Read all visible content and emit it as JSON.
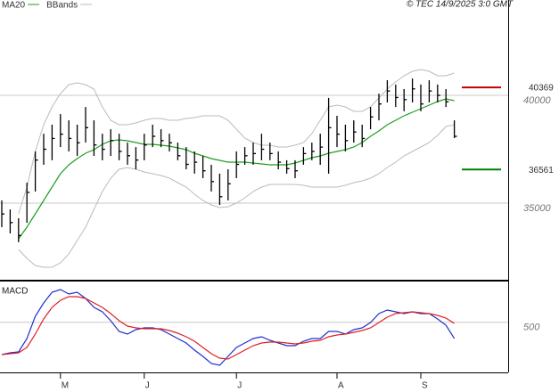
{
  "chart_data": [
    {
      "type": "ohlc",
      "credit": "© TEC 14/9/2025 3:0 GMT",
      "categories": [
        null,
        null,
        null,
        null,
        null,
        null,
        null,
        "M",
        null,
        null,
        null,
        null,
        null,
        null,
        null,
        null,
        null,
        "J",
        null,
        null,
        null,
        null,
        null,
        null,
        null,
        null,
        null,
        null,
        "J",
        null,
        null,
        null,
        null,
        null,
        null,
        null,
        null,
        null,
        null,
        null,
        "A",
        null,
        null,
        null,
        null,
        null,
        null,
        null,
        null,
        null,
        "S",
        null,
        null,
        null,
        null
      ],
      "high": [
        35130,
        34710,
        34300,
        35950,
        37400,
        38220,
        38640,
        39130,
        38840,
        38640,
        39460,
        38840,
        38220,
        38430,
        38220,
        37810,
        37600,
        38220,
        38640,
        38430,
        38220,
        37810,
        37600,
        37400,
        37190,
        36780,
        36370,
        36570,
        37400,
        37600,
        37810,
        38220,
        37810,
        37400,
        36990,
        36990,
        37600,
        37810,
        38220,
        39880,
        39050,
        38640,
        38840,
        38640,
        39460,
        40080,
        40700,
        40500,
        40290,
        40780,
        40500,
        40700,
        40500,
        40290,
        38840
      ],
      "low": [
        33890,
        33600,
        33190,
        34090,
        35540,
        36780,
        36990,
        37600,
        37400,
        37190,
        37810,
        37190,
        36990,
        37190,
        36990,
        36780,
        36570,
        36990,
        37600,
        37600,
        37400,
        36990,
        36570,
        36370,
        36160,
        35540,
        34920,
        35130,
        36160,
        36780,
        36780,
        36990,
        36990,
        36570,
        36370,
        36160,
        36780,
        36990,
        36780,
        36370,
        37600,
        37400,
        37810,
        37600,
        38430,
        38840,
        39670,
        39460,
        39260,
        39670,
        39260,
        39670,
        39670,
        39460,
        38020
      ],
      "close": [
        34500,
        34100,
        33500,
        35500,
        37000,
        37500,
        38000,
        38200,
        38000,
        37800,
        38500,
        37700,
        37500,
        37900,
        37400,
        37200,
        37000,
        37700,
        38100,
        37900,
        37800,
        37200,
        36800,
        36900,
        36500,
        36000,
        35300,
        35900,
        36800,
        37200,
        37300,
        37500,
        37300,
        36900,
        36600,
        36500,
        37300,
        37400,
        37600,
        38500,
        38200,
        37900,
        38300,
        38000,
        39000,
        39600,
        40200,
        39900,
        39800,
        40300,
        39600,
        40200,
        40000,
        39700,
        38100
      ],
      "overlays": [
        {
          "name": "MA20",
          "color": "#1f9e1f",
          "values": [
            null,
            null,
            33351,
            33888,
            34507,
            35127,
            35746,
            36366,
            36779,
            37068,
            37315,
            37481,
            37728,
            37894,
            37935,
            37894,
            37811,
            37728,
            37728,
            37687,
            37646,
            37563,
            37481,
            37315,
            37192,
            37068,
            36985,
            36902,
            36902,
            36902,
            36861,
            36820,
            36779,
            36779,
            36779,
            36861,
            36985,
            37109,
            37192,
            37315,
            37398,
            37481,
            37605,
            37811,
            38100,
            38348,
            38637,
            38844,
            39050,
            39215,
            39380,
            39546,
            39711,
            39835,
            39752
          ]
        },
        {
          "name": "BBands",
          "color": "#bbbbbb",
          "upper": [
            null,
            null,
            34507,
            35746,
            37398,
            38637,
            39463,
            40082,
            40495,
            40578,
            40495,
            40289,
            39463,
            38843,
            38637,
            38637,
            38720,
            38843,
            38926,
            38926,
            38843,
            38843,
            38926,
            38967,
            39050,
            39050,
            39050,
            38843,
            38430,
            38017,
            37811,
            37687,
            37687,
            37604,
            37604,
            37687,
            37811,
            38224,
            38843,
            39463,
            39546,
            39463,
            39256,
            39256,
            39463,
            39876,
            40289,
            40619,
            40908,
            41115,
            41198,
            41115,
            40908,
            40908,
            41032
          ],
          "lower": [
            null,
            null,
            32855,
            32442,
            32112,
            32029,
            32029,
            32235,
            32648,
            33268,
            33887,
            34713,
            35539,
            36159,
            36572,
            36655,
            36572,
            36448,
            36365,
            36283,
            36159,
            35952,
            35746,
            35416,
            35126,
            34920,
            34796,
            34837,
            35003,
            35250,
            35539,
            35746,
            35870,
            35870,
            35870,
            35870,
            35829,
            35746,
            35746,
            35746,
            35746,
            35829,
            35952,
            36035,
            36159,
            36365,
            36655,
            36902,
            37192,
            37398,
            37604,
            37811,
            38141,
            38554,
            38637
          ]
        }
      ],
      "levels": [
        {
          "value": 40369,
          "color": "#c00000"
        },
        {
          "value": 36561,
          "color": "#008000"
        }
      ],
      "ylim": [
        31450,
        44420
      ],
      "yticks": [
        35000,
        40000
      ],
      "grid": true
    },
    {
      "type": "line",
      "title": "MACD",
      "series": [
        {
          "color": "#1f2fd0",
          "values": [
            -80,
            -48,
            -32,
            208,
            608,
            848,
            1040,
            1088,
            1008,
            1040,
            928,
            768,
            688,
            528,
            336,
            288,
            368,
            400,
            400,
            368,
            288,
            208,
            128,
            0,
            -112,
            -240,
            -272,
            -112,
            48,
            128,
            208,
            240,
            176,
            128,
            80,
            80,
            160,
            208,
            208,
            336,
            336,
            288,
            368,
            400,
            496,
            656,
            720,
            688,
            656,
            688,
            656,
            656,
            560,
            448,
            208
          ]
        },
        {
          "color": "#e02020",
          "values": [
            -80,
            -64,
            -48,
            48,
            288,
            560,
            768,
            896,
            960,
            960,
            928,
            848,
            768,
            656,
            528,
            432,
            400,
            384,
            384,
            384,
            352,
            304,
            240,
            160,
            48,
            -64,
            -144,
            -160,
            -80,
            0,
            80,
            128,
            144,
            144,
            128,
            112,
            128,
            160,
            176,
            240,
            272,
            288,
            320,
            352,
            400,
            496,
            592,
            656,
            672,
            688,
            672,
            656,
            624,
            576,
            480
          ]
        }
      ],
      "ylim": [
        -400,
        1200
      ],
      "yticks": [
        500
      ],
      "grid": true
    }
  ]
}
